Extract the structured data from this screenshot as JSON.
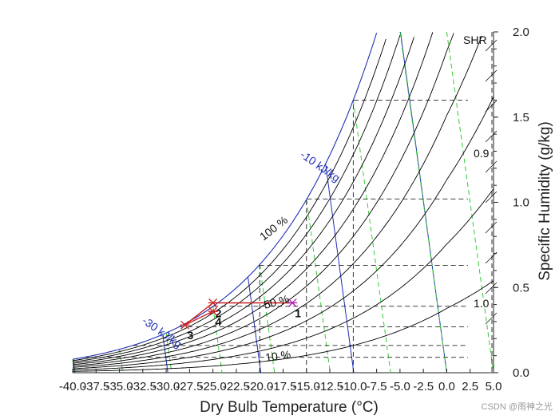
{
  "chart_data": {
    "type": "line",
    "title": "",
    "xlabel": "Dry Bulb Temperature (°C)",
    "ylabel": "Specific Humidity (g/kg)",
    "xlim": [
      -40,
      5
    ],
    "ylim": [
      0,
      2
    ],
    "x_ticks": [
      -40,
      -37.5,
      -35,
      -32.5,
      -30,
      -27.5,
      -25,
      -22.5,
      -20,
      -17.5,
      -15,
      -12.5,
      -10,
      -7.5,
      -5,
      -2.5,
      0,
      2.5,
      5
    ],
    "x_tick_labels": [
      "-40.0",
      "-37.5",
      "-35.0",
      "-32.5",
      "-30.0",
      "-27.5",
      "-25.0",
      "-22.5",
      "-20.0",
      "-17.5",
      "-15.0",
      "-12.5",
      "-10.0",
      "-7.5",
      "-5.0",
      "-2.5",
      "0.0",
      "2.5",
      "5.0"
    ],
    "y_ticks": [
      0,
      0.5,
      1,
      1.5,
      2
    ],
    "y_tick_labels": [
      "0.0",
      "0.5",
      "1.0",
      "1.5",
      "2.0"
    ],
    "grid": false,
    "rh_curves_percent": [
      10,
      20,
      30,
      40,
      50,
      60,
      70,
      80,
      90,
      100
    ],
    "enthalpy_lines_kj_per_kg": [
      -40,
      -30,
      -20,
      -10,
      0
    ],
    "wet_bulb_lines_c": [
      -40,
      -35,
      -30,
      -25,
      -20,
      -15,
      -10,
      -5,
      0
    ],
    "dashed_grid_temperatures_c": [
      -20,
      -15,
      -10
    ],
    "dashed_grid_humidities": [
      0.09,
      0.16,
      0.27,
      0.39,
      0.63,
      1.02,
      1.6
    ],
    "states": [
      {
        "label": "1",
        "t": -16.5,
        "w": 0.41
      },
      {
        "label": "2",
        "t": -25,
        "w": 0.41
      },
      {
        "label": "3",
        "t": -28,
        "w": 0.28
      },
      {
        "label": "4",
        "t": -25,
        "w": 0.36
      }
    ],
    "process_path": [
      "1",
      "2",
      "3",
      "4"
    ],
    "annotations": {
      "rh_labels": [
        "100 %",
        "50 %",
        "10 %"
      ],
      "enthalpy_labels": [
        "-10 kJ/kg",
        "-30 kJ/kg"
      ],
      "shr_title": "SHR",
      "shr_values": [
        "0.9",
        "1.0"
      ]
    },
    "watermark": "CSDN @雨神之光",
    "colors": {
      "rh": "#000000",
      "enthalpy": "#1f2fb3",
      "wet_bulb": "#33cc33",
      "process": "#cc1f1f",
      "marker": "#b21ab2",
      "dashed": "#000000"
    }
  }
}
